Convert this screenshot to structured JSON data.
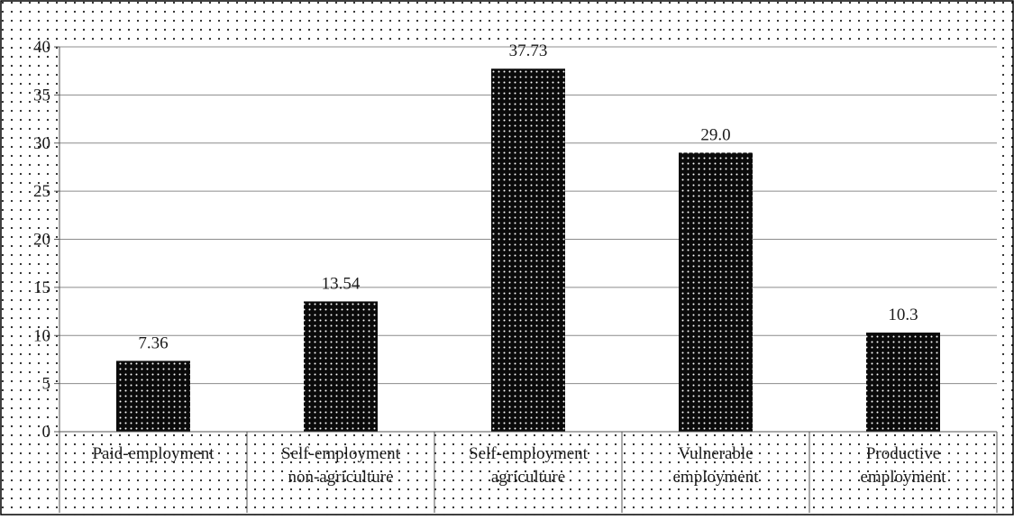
{
  "chart_data": {
    "type": "bar",
    "categories": [
      [
        "Paid-employment"
      ],
      [
        "Self-employment",
        "non-agriculture"
      ],
      [
        "Self-employment",
        "agriculture"
      ],
      [
        "Vulnerable",
        "employment"
      ],
      [
        "Productive",
        "employment"
      ]
    ],
    "values": [
      7.36,
      13.54,
      37.73,
      29.0,
      10.3
    ],
    "value_labels": [
      "7.36",
      "13.54",
      "37.73",
      "29.0",
      "10.3"
    ],
    "ylim": [
      0,
      40
    ],
    "yticks": [
      0,
      5,
      10,
      15,
      20,
      25,
      30,
      35,
      40
    ],
    "grid": true,
    "legend": "none",
    "title": "",
    "xlabel": "",
    "ylabel": ""
  },
  "colors": {
    "pattern_background": "#ffffff",
    "pattern_dots": "#222222",
    "bar_fill": "#0a0a0a",
    "bar_dots": "#ffffff",
    "grid": "#8c8c8c",
    "axis": "#555555",
    "border": "#000000"
  }
}
